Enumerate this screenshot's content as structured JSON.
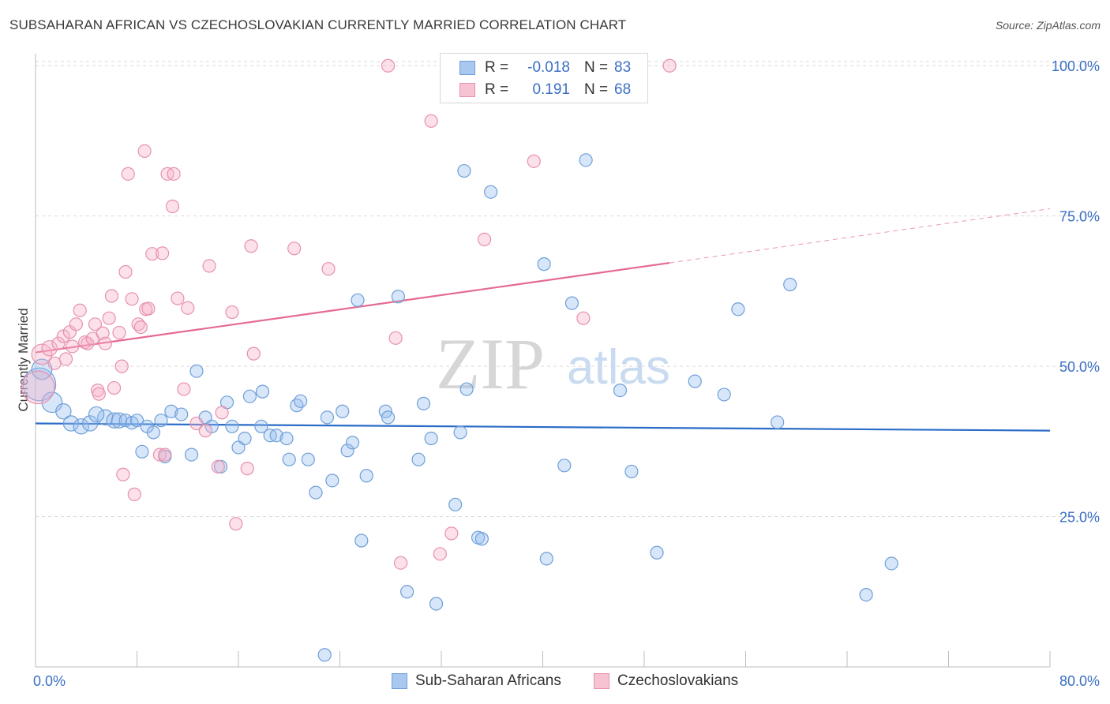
{
  "header": {
    "title": "SUBSAHARAN AFRICAN VS CZECHOSLOVAKIAN CURRENTLY MARRIED CORRELATION CHART",
    "source": "Source: ZipAtlas.com"
  },
  "watermark": {
    "zip": "ZIP",
    "atlas": "atlas"
  },
  "stats": [
    {
      "r_label": "R =",
      "r_value": "-0.018",
      "n_label": "N =",
      "n_value": "83",
      "color": "#a9c8f0",
      "border": "#6f9fd8"
    },
    {
      "r_label": "R =",
      "r_value": "0.191",
      "n_label": "N =",
      "n_value": "68",
      "color": "#f7c3d3",
      "border": "#e691ad"
    }
  ],
  "legend": [
    {
      "label": "Sub-Saharan Africans",
      "color": "#a9c8f0",
      "border": "#6f9fd8"
    },
    {
      "label": "Czechoslovakians",
      "color": "#f7c3d3",
      "border": "#e691ad"
    }
  ],
  "colors": {
    "blue_fill": "rgba(150,190,238,0.38)",
    "blue_stroke": "#6f9fd8",
    "blue_line": "#2a6cc7",
    "pink_fill": "rgba(246,176,200,0.38)",
    "pink_stroke": "#e691ad",
    "pink_line": "#e56a92",
    "grid": "#d9d9d9",
    "axis_text": "#3a6fc4"
  },
  "chart_data": {
    "type": "scatter",
    "title": "SUBSAHARAN AFRICAN VS CZECHOSLOVAKIAN CURRENTLY MARRIED CORRELATION CHART",
    "xlabel": "",
    "ylabel": "Currently Married",
    "xlim": [
      0,
      80
    ],
    "ylim": [
      0,
      102
    ],
    "x_tick_labels": [
      "0.0%",
      "80.0%"
    ],
    "y_ticks": [
      25,
      50,
      75,
      100
    ],
    "y_tick_labels": [
      "25.0%",
      "50.0%",
      "75.0%",
      "100.0%"
    ],
    "grid": true,
    "legend_position": "bottom",
    "series": [
      {
        "name": "Sub-Saharan Africans",
        "r": -0.018,
        "n": 83,
        "trend": {
          "x": [
            0,
            80
          ],
          "y": [
            40.5,
            39.3
          ]
        },
        "points": [
          [
            0.3,
            47,
            2.6
          ],
          [
            0.5,
            49.5,
            1.6
          ],
          [
            1.3,
            44,
            1.6
          ],
          [
            2.2,
            42.5,
            1.2
          ],
          [
            2.8,
            40.5,
            1.2
          ],
          [
            3.6,
            40,
            1.2
          ],
          [
            4.3,
            40.5,
            1.2
          ],
          [
            5.5,
            41.5,
            1.2
          ],
          [
            4.8,
            42,
            1.2
          ],
          [
            6.2,
            41,
            1.2
          ],
          [
            6.6,
            41,
            1.2
          ],
          [
            7.1,
            41,
            1
          ],
          [
            7.6,
            40.6,
            1
          ],
          [
            8,
            41,
            1
          ],
          [
            8.8,
            40,
            1
          ],
          [
            9.3,
            39,
            1
          ],
          [
            9.9,
            41,
            1
          ],
          [
            10.2,
            35,
            1
          ],
          [
            8.4,
            35.8,
            1
          ],
          [
            10.7,
            42.5,
            1
          ],
          [
            11.5,
            42,
            1
          ],
          [
            12.3,
            35.3,
            1
          ],
          [
            12.7,
            49.2,
            1
          ],
          [
            13.4,
            41.5,
            1
          ],
          [
            13.9,
            40,
            1
          ],
          [
            14.6,
            33.3,
            1
          ],
          [
            15.1,
            44,
            1
          ],
          [
            15.5,
            40,
            1
          ],
          [
            16,
            36.5,
            1
          ],
          [
            16.5,
            38,
            1
          ],
          [
            16.9,
            45,
            1
          ],
          [
            17.8,
            40,
            1
          ],
          [
            17.9,
            45.8,
            1
          ],
          [
            18.5,
            38.5,
            1
          ],
          [
            19,
            38.5,
            1
          ],
          [
            19.8,
            38,
            1
          ],
          [
            20,
            34.5,
            1
          ],
          [
            20.6,
            43.5,
            1
          ],
          [
            20.9,
            44.2,
            1
          ],
          [
            21.5,
            34.5,
            1
          ],
          [
            22.1,
            29,
            1
          ],
          [
            22.8,
            2,
            1
          ],
          [
            23,
            41.5,
            1
          ],
          [
            23.4,
            31,
            1
          ],
          [
            24.2,
            42.5,
            1
          ],
          [
            24.6,
            36,
            1
          ],
          [
            25,
            37.3,
            1
          ],
          [
            25.4,
            61,
            1
          ],
          [
            25.7,
            21,
            1
          ],
          [
            26.1,
            31.8,
            1
          ],
          [
            27.6,
            42.5,
            1
          ],
          [
            27.8,
            41.5,
            1
          ],
          [
            28.6,
            61.6,
            1
          ],
          [
            29.3,
            12.5,
            1
          ],
          [
            30.2,
            34.5,
            1
          ],
          [
            30.6,
            43.8,
            1
          ],
          [
            31.2,
            38,
            1
          ],
          [
            31.6,
            10.5,
            1
          ],
          [
            33.1,
            27,
            1
          ],
          [
            33.5,
            39,
            1
          ],
          [
            33.8,
            82.5,
            1
          ],
          [
            34,
            46.2,
            1
          ],
          [
            34.9,
            21.5,
            1
          ],
          [
            35.2,
            21.3,
            1
          ],
          [
            35.9,
            79,
            1
          ],
          [
            40.3,
            18,
            1
          ],
          [
            40.1,
            67,
            1
          ],
          [
            41.7,
            33.5,
            1
          ],
          [
            42.3,
            60.5,
            1
          ],
          [
            43.4,
            84.3,
            1
          ],
          [
            46.1,
            46,
            1
          ],
          [
            47,
            32.5,
            1
          ],
          [
            49,
            19,
            1
          ],
          [
            52,
            47.5,
            1
          ],
          [
            54.3,
            45.3,
            1
          ],
          [
            55.4,
            59.5,
            1
          ],
          [
            58.5,
            40.7,
            1
          ],
          [
            59.5,
            63.6,
            1
          ],
          [
            65.5,
            12,
            1
          ],
          [
            67.5,
            17.2,
            1
          ]
        ]
      },
      {
        "name": "Czechoslovakians",
        "r": 0.191,
        "n": 68,
        "trend": {
          "x": [
            0,
            50
          ],
          "y": [
            52.3,
            67.2
          ]
        },
        "trend_ext": {
          "x": [
            50,
            80
          ],
          "y": [
            67.2,
            76.2
          ]
        },
        "points": [
          [
            0.2,
            46.5,
            2.6
          ],
          [
            0.5,
            52,
            1.6
          ],
          [
            1.1,
            53,
            1.2
          ],
          [
            1.5,
            50.5,
            1
          ],
          [
            1.8,
            53.8,
            1
          ],
          [
            2.2,
            55,
            1
          ],
          [
            2.4,
            51.2,
            1
          ],
          [
            2.7,
            55.7,
            1
          ],
          [
            2.9,
            53.3,
            1
          ],
          [
            3.2,
            57,
            1
          ],
          [
            3.5,
            59.3,
            1
          ],
          [
            3.9,
            54,
            1
          ],
          [
            4.1,
            53.8,
            1
          ],
          [
            4.5,
            54.6,
            1
          ],
          [
            4.7,
            57,
            1
          ],
          [
            4.9,
            46,
            1
          ],
          [
            5,
            45.4,
            1
          ],
          [
            5.3,
            55.5,
            1
          ],
          [
            5.5,
            53.8,
            1
          ],
          [
            5.8,
            58,
            1
          ],
          [
            6,
            61.7,
            1
          ],
          [
            6.2,
            46.4,
            1
          ],
          [
            6.6,
            55.6,
            1
          ],
          [
            6.8,
            50,
            1
          ],
          [
            6.9,
            32,
            1
          ],
          [
            7.1,
            65.7,
            1
          ],
          [
            7.3,
            82,
            1
          ],
          [
            7.6,
            61.2,
            1
          ],
          [
            7.8,
            28.7,
            1
          ],
          [
            8.1,
            57,
            1
          ],
          [
            8.3,
            56.5,
            1
          ],
          [
            8.6,
            85.8,
            1
          ],
          [
            8.7,
            59.5,
            1
          ],
          [
            8.9,
            59.6,
            1
          ],
          [
            9.2,
            68.7,
            1
          ],
          [
            9.8,
            35.3,
            1
          ],
          [
            10,
            68.8,
            1
          ],
          [
            10.2,
            35.3,
            1
          ],
          [
            10.4,
            82,
            1
          ],
          [
            10.8,
            76.6,
            1
          ],
          [
            10.9,
            82,
            1
          ],
          [
            11.2,
            61.3,
            1
          ],
          [
            11.7,
            46.2,
            1
          ],
          [
            12,
            59.7,
            1
          ],
          [
            12.7,
            40.5,
            1
          ],
          [
            13.4,
            39.3,
            1
          ],
          [
            13.7,
            66.7,
            1
          ],
          [
            14.4,
            33.3,
            1
          ],
          [
            14.7,
            42.3,
            1
          ],
          [
            15.5,
            59,
            1
          ],
          [
            15.8,
            23.8,
            1
          ],
          [
            16.7,
            33,
            1
          ],
          [
            17,
            70,
            1
          ],
          [
            17.2,
            52.1,
            1
          ],
          [
            20.4,
            69.6,
            1
          ],
          [
            23.1,
            66.2,
            1
          ],
          [
            27.8,
            100,
            1
          ],
          [
            28.4,
            54.7,
            1
          ],
          [
            28.8,
            17.3,
            1
          ],
          [
            31.2,
            90.8,
            1
          ],
          [
            31.9,
            18.8,
            1
          ],
          [
            32.8,
            22.2,
            1
          ],
          [
            35.4,
            71.1,
            1
          ],
          [
            39.3,
            84.1,
            1
          ],
          [
            43.2,
            58,
            1
          ],
          [
            50,
            100,
            1
          ]
        ]
      }
    ]
  }
}
